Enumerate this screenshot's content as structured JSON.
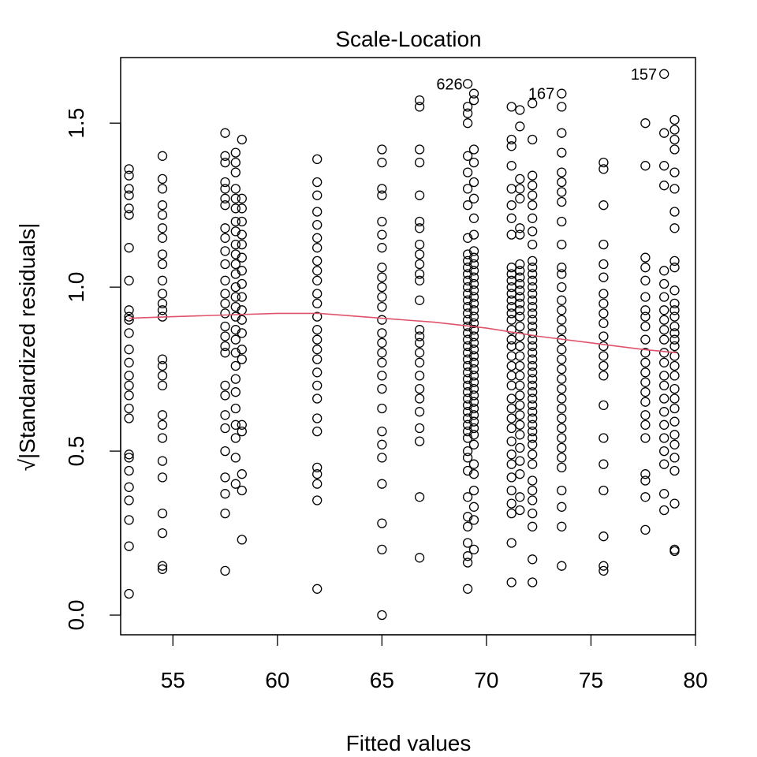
{
  "chart_data": {
    "type": "scatter",
    "title": "Scale-Location",
    "xlabel": "Fitted values",
    "ylabel_prefix": "√",
    "ylabel": "|Standardized residuals|",
    "xlim": [
      52.5,
      80.0
    ],
    "ylim": [
      -0.06,
      1.7
    ],
    "xticks": [
      55,
      60,
      65,
      70,
      75,
      80
    ],
    "yticks": [
      0.0,
      0.5,
      1.0,
      1.5
    ],
    "xtick_labels": [
      "55",
      "60",
      "65",
      "70",
      "75",
      "80"
    ],
    "ytick_labels": [
      "0.0",
      "0.5",
      "1.0",
      "1.5"
    ],
    "grid": false,
    "point_color": "#000000",
    "smoother_color": "#DF536B",
    "annotations": [
      {
        "text": "626",
        "x": 69.2,
        "y": 1.62
      },
      {
        "text": "167",
        "x": 73.6,
        "y": 1.59
      },
      {
        "text": "157",
        "x": 78.5,
        "y": 1.65
      }
    ],
    "smoother": {
      "x": [
        52.9,
        55,
        57.5,
        60,
        62,
        65,
        67.5,
        70,
        72.5,
        75,
        77.5,
        79.1
      ],
      "y": [
        0.905,
        0.91,
        0.915,
        0.92,
        0.92,
        0.905,
        0.893,
        0.875,
        0.85,
        0.83,
        0.81,
        0.8
      ]
    },
    "series": [
      {
        "x": 52.9,
        "y": [
          1.36,
          1.34,
          1.3,
          1.28,
          1.24,
          1.22,
          1.12,
          1.02,
          0.93,
          0.91,
          0.9,
          0.86,
          0.81,
          0.77,
          0.73,
          0.7,
          0.67,
          0.63,
          0.6,
          0.49,
          0.48,
          0.44,
          0.39,
          0.35,
          0.29,
          0.21,
          0.065
        ]
      },
      {
        "x": 54.5,
        "y": [
          1.4,
          1.33,
          1.3,
          1.25,
          1.22,
          1.18,
          1.15,
          1.1,
          1.07,
          1.02,
          0.98,
          0.95,
          0.93,
          0.91,
          0.78,
          0.76,
          0.73,
          0.7,
          0.61,
          0.58,
          0.54,
          0.47,
          0.42,
          0.31,
          0.25,
          0.15,
          0.14
        ]
      },
      {
        "x": 57.5,
        "y": [
          1.47,
          1.4,
          1.38,
          1.32,
          1.3,
          1.27,
          1.25,
          1.18,
          1.15,
          1.11,
          1.07,
          1.02,
          0.98,
          0.95,
          0.92,
          0.88,
          0.85,
          0.82,
          0.8,
          0.7,
          0.67,
          0.61,
          0.57,
          0.5,
          0.42,
          0.37,
          0.31,
          0.135
        ]
      },
      {
        "x": 58.0,
        "y": [
          1.41,
          1.38,
          1.35,
          1.3,
          1.27,
          1.24,
          1.2,
          1.17,
          1.13,
          1.1,
          1.07,
          1.04,
          1.0,
          0.97,
          0.94,
          0.91,
          0.87,
          0.84,
          0.8,
          0.76,
          0.72,
          0.68,
          0.63,
          0.58,
          0.54,
          0.48,
          0.4
        ]
      },
      {
        "x": 58.3,
        "y": [
          1.45,
          1.27,
          1.24,
          1.2,
          1.16,
          1.13,
          1.09,
          1.05,
          1.01,
          0.97,
          0.93,
          0.9,
          0.86,
          0.81,
          0.78,
          0.58,
          0.56,
          0.43,
          0.38,
          0.23
        ]
      },
      {
        "x": 61.9,
        "y": [
          1.39,
          1.32,
          1.28,
          1.23,
          1.19,
          1.15,
          1.12,
          1.08,
          1.05,
          1.02,
          0.98,
          0.95,
          0.91,
          0.87,
          0.84,
          0.81,
          0.78,
          0.74,
          0.7,
          0.66,
          0.6,
          0.56,
          0.45,
          0.43,
          0.4,
          0.35,
          0.08
        ]
      },
      {
        "x": 65.0,
        "y": [
          1.42,
          1.38,
          1.3,
          1.28,
          1.2,
          1.16,
          1.12,
          1.06,
          1.03,
          1.0,
          0.97,
          0.94,
          0.9,
          0.86,
          0.83,
          0.8,
          0.77,
          0.73,
          0.69,
          0.63,
          0.56,
          0.52,
          0.48,
          0.4,
          0.28,
          0.2,
          0.0
        ]
      },
      {
        "x": 66.8,
        "y": [
          1.57,
          1.55,
          1.42,
          1.38,
          1.28,
          1.2,
          1.18,
          1.13,
          1.1,
          1.07,
          1.04,
          1.02,
          0.96,
          0.87,
          0.85,
          0.83,
          0.8,
          0.77,
          0.73,
          0.69,
          0.66,
          0.62,
          0.57,
          0.53,
          0.36,
          0.175
        ]
      },
      {
        "x": 69.1,
        "y": [
          1.62,
          1.55,
          1.53,
          1.5,
          1.4,
          1.35,
          1.3,
          1.25,
          1.15,
          1.1,
          1.08,
          1.06,
          1.04,
          1.02,
          1.0,
          0.98,
          0.96,
          0.94,
          0.92,
          0.9,
          0.88,
          0.86,
          0.84,
          0.82,
          0.8,
          0.78,
          0.76,
          0.74,
          0.72,
          0.7,
          0.68,
          0.66,
          0.64,
          0.62,
          0.6,
          0.58,
          0.56,
          0.54,
          0.5,
          0.48,
          0.44,
          0.36,
          0.3,
          0.27,
          0.22,
          0.18,
          0.16,
          0.08
        ]
      },
      {
        "x": 69.4,
        "y": [
          1.59,
          1.57,
          1.42,
          1.38,
          1.32,
          1.27,
          1.21,
          1.16,
          1.11,
          1.09,
          1.07,
          1.05,
          1.03,
          1.01,
          0.99,
          0.97,
          0.95,
          0.93,
          0.91,
          0.89,
          0.87,
          0.85,
          0.83,
          0.81,
          0.79,
          0.77,
          0.75,
          0.73,
          0.71,
          0.69,
          0.67,
          0.65,
          0.63,
          0.61,
          0.59,
          0.57,
          0.55,
          0.52,
          0.46,
          0.43,
          0.38,
          0.33,
          0.29,
          0.2
        ]
      },
      {
        "x": 71.2,
        "y": [
          1.55,
          1.45,
          1.43,
          1.37,
          1.3,
          1.25,
          1.21,
          1.16,
          1.06,
          1.04,
          1.02,
          1.0,
          0.98,
          0.96,
          0.94,
          0.92,
          0.9,
          0.87,
          0.84,
          0.82,
          0.79,
          0.76,
          0.73,
          0.7,
          0.66,
          0.63,
          0.6,
          0.57,
          0.53,
          0.49,
          0.46,
          0.42,
          0.38,
          0.34,
          0.31,
          0.22,
          0.1
        ]
      },
      {
        "x": 71.6,
        "y": [
          1.54,
          1.49,
          1.33,
          1.3,
          1.27,
          1.18,
          1.16,
          1.07,
          1.05,
          1.03,
          1.01,
          0.99,
          0.97,
          0.95,
          0.93,
          0.91,
          0.88,
          0.85,
          0.82,
          0.79,
          0.76,
          0.73,
          0.7,
          0.67,
          0.64,
          0.61,
          0.58,
          0.55,
          0.51,
          0.47,
          0.43,
          0.36,
          0.32
        ]
      },
      {
        "x": 72.2,
        "y": [
          1.56,
          1.45,
          1.34,
          1.31,
          1.28,
          1.25,
          1.21,
          1.17,
          1.13,
          1.08,
          1.06,
          1.04,
          1.02,
          1.0,
          0.98,
          0.96,
          0.94,
          0.92,
          0.9,
          0.88,
          0.86,
          0.84,
          0.82,
          0.8,
          0.78,
          0.76,
          0.74,
          0.72,
          0.7,
          0.68,
          0.66,
          0.64,
          0.62,
          0.6,
          0.58,
          0.56,
          0.54,
          0.52,
          0.49,
          0.46,
          0.41,
          0.38,
          0.35,
          0.31,
          0.27,
          0.17,
          0.1
        ]
      },
      {
        "x": 73.6,
        "y": [
          1.59,
          1.55,
          1.47,
          1.41,
          1.35,
          1.32,
          1.29,
          1.26,
          1.2,
          1.13,
          1.06,
          1.04,
          1.0,
          0.96,
          0.93,
          0.9,
          0.87,
          0.84,
          0.81,
          0.78,
          0.75,
          0.72,
          0.69,
          0.66,
          0.63,
          0.6,
          0.57,
          0.54,
          0.51,
          0.48,
          0.45,
          0.38,
          0.33,
          0.27,
          0.15
        ]
      },
      {
        "x": 75.6,
        "y": [
          1.38,
          1.36,
          1.25,
          1.13,
          1.07,
          1.03,
          0.98,
          0.95,
          0.92,
          0.89,
          0.85,
          0.82,
          0.79,
          0.76,
          0.73,
          0.64,
          0.54,
          0.46,
          0.38,
          0.24,
          0.15,
          0.135
        ]
      },
      {
        "x": 77.6,
        "y": [
          1.5,
          1.37,
          1.09,
          1.06,
          1.02,
          0.97,
          0.93,
          0.91,
          0.88,
          0.84,
          0.8,
          0.77,
          0.74,
          0.71,
          0.68,
          0.65,
          0.61,
          0.58,
          0.54,
          0.43,
          0.41,
          0.36,
          0.26
        ]
      },
      {
        "x": 78.5,
        "y": [
          1.65,
          1.47,
          1.37,
          1.31,
          1.05,
          1.01,
          0.97,
          0.93,
          0.9,
          0.87,
          0.84,
          0.8,
          0.77,
          0.73,
          0.7,
          0.66,
          0.62,
          0.58,
          0.54,
          0.5,
          0.46,
          0.37,
          0.32
        ]
      },
      {
        "x": 79.0,
        "y": [
          1.51,
          1.48,
          1.45,
          1.42,
          1.35,
          1.3,
          1.23,
          1.18,
          1.08,
          1.06,
          0.99,
          0.95,
          0.93,
          0.91,
          0.88,
          0.86,
          0.84,
          0.82,
          0.79,
          0.76,
          0.73,
          0.69,
          0.66,
          0.63,
          0.59,
          0.55,
          0.52,
          0.48,
          0.44,
          0.34,
          0.2,
          0.195
        ]
      }
    ]
  }
}
